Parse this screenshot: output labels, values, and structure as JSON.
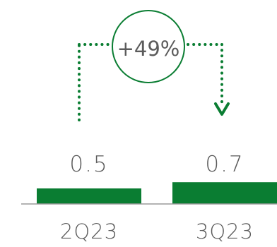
{
  "chart_data": {
    "type": "bar",
    "categories": [
      "2Q23",
      "3Q23"
    ],
    "values": [
      0.5,
      0.7
    ],
    "value_labels": [
      "0.5",
      "0.7"
    ],
    "change_label": "+49%",
    "title": "",
    "xlabel": "",
    "ylabel": "",
    "grid": false,
    "legend": "none"
  },
  "colors": {
    "bar": "#0a7d32",
    "connector": "#0a7d32",
    "circle": "#0a7d32",
    "baseline": "#9a9a9a",
    "text": "#5b5b5b"
  }
}
